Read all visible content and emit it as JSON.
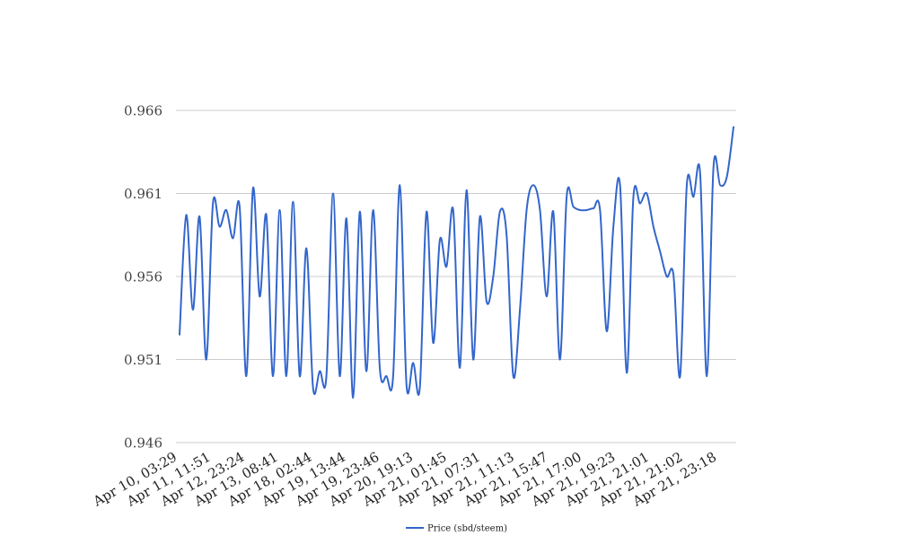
{
  "chart_data": {
    "type": "line",
    "title": "",
    "xlabel": "",
    "ylabel": "",
    "ylim": [
      0.946,
      0.966
    ],
    "y_ticks": [
      "0.946",
      "0.951",
      "0.956",
      "0.961",
      "0.966"
    ],
    "x_tick_labels": [
      "Apr 10, 03:29",
      "Apr 11, 11:51",
      "Apr 12, 23:24",
      "Apr 13, 08:41",
      "Apr 18, 02:44",
      "Apr 19, 13:44",
      "Apr 19, 23:46",
      "Apr 20, 19:13",
      "Apr 21, 01:45",
      "Apr 21, 07:31",
      "Apr 21, 11:13",
      "Apr 21, 15:47",
      "Apr 21, 17:00",
      "Apr 21, 19:23",
      "Apr 21, 21:01",
      "Apr 21, 21:02",
      "Apr 21, 23:18"
    ],
    "grid": true,
    "legend_position": "bottom",
    "series": [
      {
        "name": "Price (sbd/steem)",
        "color": "#3366cc",
        "values": [
          0.9525,
          0.9597,
          0.954,
          0.9596,
          0.951,
          0.9604,
          0.959,
          0.96,
          0.9583,
          0.9602,
          0.95,
          0.9613,
          0.9548,
          0.9597,
          0.95,
          0.96,
          0.95,
          0.9605,
          0.95,
          0.9577,
          0.9493,
          0.9503,
          0.95,
          0.961,
          0.95,
          0.9595,
          0.9487,
          0.9599,
          0.9503,
          0.96,
          0.9505,
          0.95,
          0.95,
          0.9615,
          0.9495,
          0.9508,
          0.9493,
          0.9599,
          0.952,
          0.9582,
          0.9566,
          0.96,
          0.9505,
          0.9612,
          0.951,
          0.9596,
          0.9545,
          0.956,
          0.9599,
          0.9585,
          0.95,
          0.954,
          0.96,
          0.9615,
          0.96,
          0.9548,
          0.9599,
          0.951,
          0.9608,
          0.9602,
          0.96,
          0.96,
          0.9601,
          0.96,
          0.9527,
          0.959,
          0.9615,
          0.9502,
          0.9608,
          0.9604,
          0.961,
          0.959,
          0.9575,
          0.956,
          0.9561,
          0.95,
          0.9615,
          0.9608,
          0.9622,
          0.95,
          0.9626,
          0.9615,
          0.962,
          0.965
        ]
      }
    ]
  }
}
